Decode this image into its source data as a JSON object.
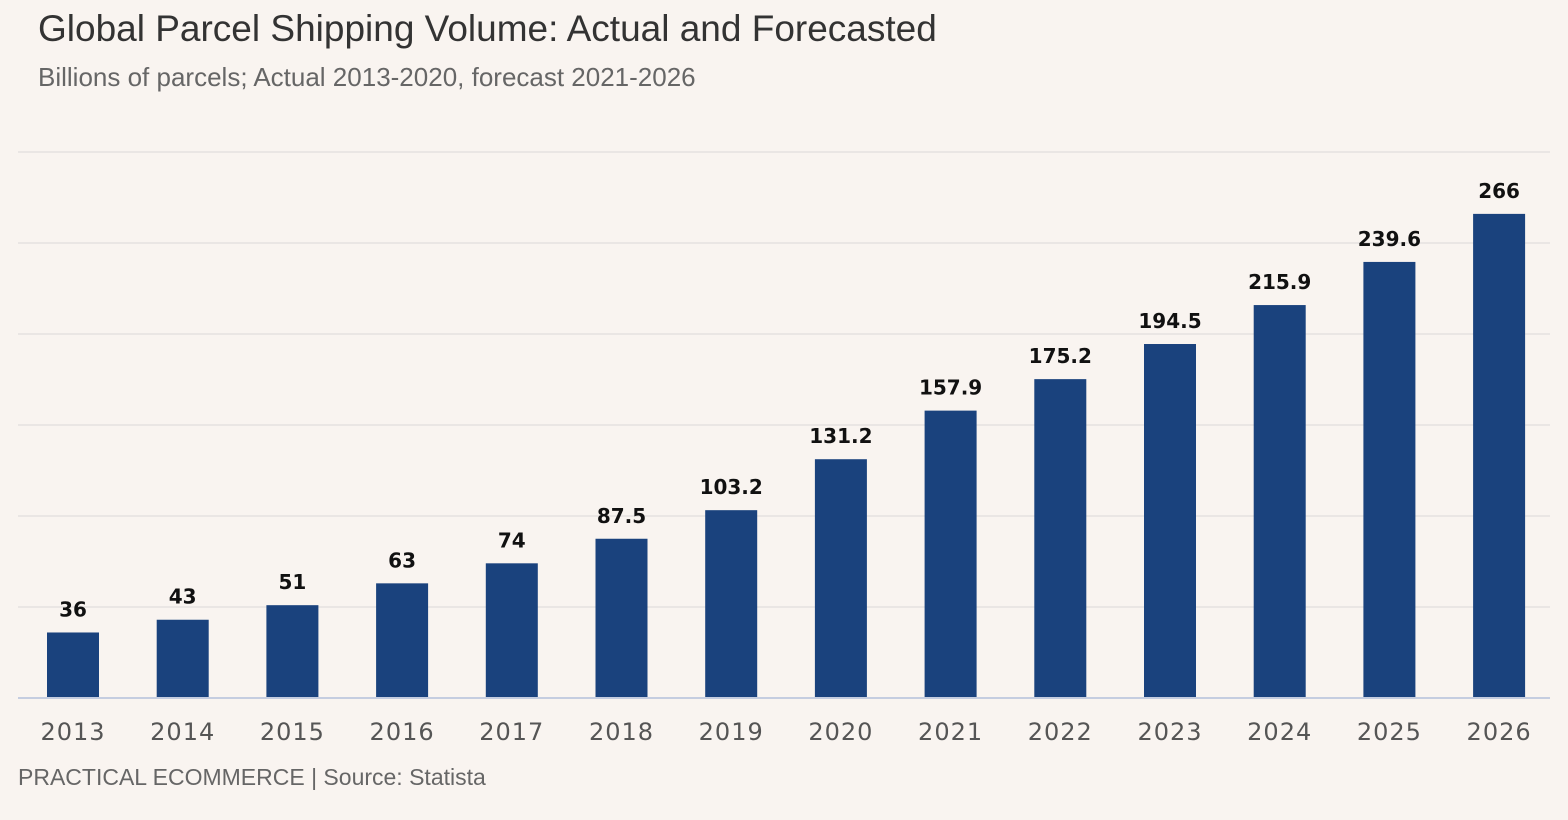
{
  "header": {
    "title": "Global Parcel Shipping Volume: Actual and Forecasted",
    "subtitle": "Billions of parcels; Actual 2013-2020, forecast 2021-2026"
  },
  "footer": {
    "source": "PRACTICAL ECOMMERCE | Source: Statista"
  },
  "chart_data": {
    "type": "bar",
    "title": "Global Parcel Shipping Volume: Actual and Forecasted",
    "subtitle": "Billions of parcels; Actual 2013-2020, forecast 2021-2026",
    "xlabel": "",
    "ylabel": "",
    "categories": [
      "2013",
      "2014",
      "2015",
      "2016",
      "2017",
      "2018",
      "2019",
      "2020",
      "2021",
      "2022",
      "2023",
      "2024",
      "2025",
      "2026"
    ],
    "values": [
      36,
      43,
      51,
      63,
      74,
      87.5,
      103.2,
      131.2,
      157.9,
      175.2,
      194.5,
      215.9,
      239.6,
      266
    ],
    "value_labels": [
      "36",
      "43",
      "51",
      "63",
      "74",
      "87.5",
      "103.2",
      "131.2",
      "157.9",
      "175.2",
      "194.5",
      "215.9",
      "239.6",
      "266"
    ],
    "ylim": [
      0,
      300
    ],
    "grid": true,
    "legend": "none",
    "bar_color": "#1a427d",
    "grid_color": "#e6e2df",
    "axis_color": "#c5cde0"
  }
}
